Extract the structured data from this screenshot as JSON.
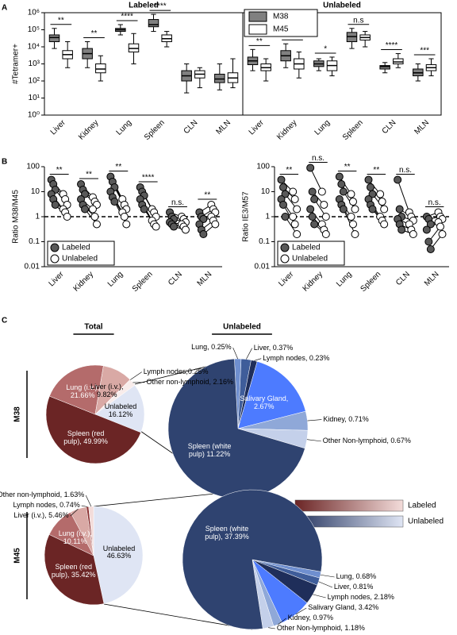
{
  "chart_data": [
    {
      "type": "box",
      "panel": "A",
      "ylabel": "#Tetramer+",
      "log": true,
      "ylim": [
        1,
        1000000
      ],
      "yticks": [
        {
          "value": 1,
          "label": "10⁰"
        },
        {
          "value": 10,
          "label": "10¹"
        },
        {
          "value": 100,
          "label": "10²"
        },
        {
          "value": 1000,
          "label": "10³"
        },
        {
          "value": 10000,
          "label": "10⁴"
        },
        {
          "value": 100000,
          "label": "10⁵"
        },
        {
          "value": 1000000,
          "label": "10⁶"
        }
      ],
      "legend": [
        {
          "name": "M38",
          "color": "#808080"
        },
        {
          "name": "M45",
          "color": "#ffffff"
        }
      ],
      "panels": [
        {
          "title": "Labeled",
          "categories": [
            "Liver",
            "Kidney",
            "Lung",
            "Spleen",
            "CLN",
            "MLN"
          ],
          "significance": [
            "**",
            "**",
            "****",
            "****",
            null,
            null
          ],
          "values": [
            [
              [
                8000,
                20000,
                35000,
                50000,
                120000
              ],
              [
                600,
                2000,
                4000,
                8000,
                20000
              ],
              [
                50000,
                80000,
                100000,
                120000,
                200000
              ],
              [
                80000,
                150000,
                200000,
                400000,
                800000
              ],
              [
                20,
                100,
                200,
                400,
                1000
              ],
              [
                30,
                80,
                130,
                250,
                1000
              ]
            ],
            [
              [
                600,
                2000,
                3500,
                6000,
                20000
              ],
              [
                100,
                300,
                500,
                1000,
                3000
              ],
              [
                1000,
                5000,
                8000,
                15000,
                60000
              ],
              [
                10000,
                20000,
                30000,
                50000,
                80000
              ],
              [
                40,
                150,
                250,
                400,
                600
              ],
              [
                40,
                80,
                150,
                300,
                2000
              ]
            ]
          ]
        },
        {
          "title": "Unlabeled",
          "categories": [
            "Liver",
            "Kidney",
            "Lung",
            "Spleen",
            "CLN",
            "MLN"
          ],
          "significance": [
            "**",
            "**",
            "*",
            "n.s",
            "****",
            "***"
          ],
          "values": [
            [
              [
                400,
                900,
                1500,
                2500,
                7000
              ],
              [
                600,
                1500,
                3000,
                6000,
                15000
              ],
              [
                400,
                700,
                1000,
                1500,
                2000
              ],
              [
                8000,
                20000,
                40000,
                70000,
                120000
              ],
              [
                300,
                500,
                700,
                800,
                1200
              ],
              [
                100,
                200,
                300,
                500,
                1000
              ]
            ],
            [
              [
                100,
                400,
                600,
                1000,
                2000
              ],
              [
                150,
                500,
                1000,
                2000,
                5000
              ],
              [
                200,
                400,
                800,
                1500,
                2500
              ],
              [
                10000,
                25000,
                35000,
                50000,
                80000
              ],
              [
                600,
                1000,
                1300,
                2000,
                4000
              ],
              [
                200,
                400,
                600,
                900,
                2000
              ]
            ]
          ]
        }
      ]
    },
    {
      "type": "paired",
      "panel": "B",
      "ylabel": "Ratio M38/M45",
      "log": true,
      "ylim": [
        0.01,
        100
      ],
      "yticks": [
        0.01,
        0.1,
        1,
        10,
        100
      ],
      "hline": 1,
      "categories": [
        "Liver",
        "Kidney",
        "Lung",
        "Spleen",
        "CLN",
        "MLN"
      ],
      "significance": [
        "**",
        "**",
        "**",
        "****",
        "n.s.",
        "**"
      ],
      "series": [
        {
          "name": "Labeled",
          "color": "#595959",
          "values": [
            [
              30,
              20,
              12,
              8,
              5,
              3
            ],
            [
              20,
              12,
              8,
              5,
              3,
              2
            ],
            [
              40,
              25,
              15,
              10,
              6,
              4
            ],
            [
              15,
              10,
              7,
              5,
              3,
              2
            ],
            [
              1.5,
              1,
              0.8,
              0.6,
              0.5,
              0.4
            ],
            [
              1.5,
              1,
              0.8,
              0.5,
              0.3,
              0.2
            ]
          ]
        },
        {
          "name": "Unlabeled",
          "color": "#ffffff",
          "values": [
            [
              8,
              5,
              3,
              2,
              1.5,
              1
            ],
            [
              6,
              4,
              3,
              2,
              1,
              0.5
            ],
            [
              5,
              3,
              2,
              1.5,
              1,
              0.5
            ],
            [
              2,
              1.5,
              1,
              0.7,
              0.5,
              0.4
            ],
            [
              1,
              0.8,
              0.6,
              0.5,
              0.4,
              0.3
            ],
            [
              3,
              2,
              1.5,
              1,
              0.7,
              0.5
            ]
          ]
        }
      ]
    },
    {
      "type": "paired",
      "ylabel": "Ratio IE3/M57",
      "log": true,
      "ylim": [
        0.01,
        100
      ],
      "yticks": [
        0.01,
        0.1,
        1,
        10,
        100
      ],
      "hline": 1,
      "categories": [
        "Liver",
        "Kidney",
        "Lung",
        "Spleen",
        "CLN",
        "MLN"
      ],
      "significance": [
        "**",
        "n.s.",
        "**",
        "**",
        "n.s.",
        "n.s."
      ],
      "series": [
        {
          "name": "Labeled",
          "color": "#595959",
          "values": [
            [
              30,
              15,
              8,
              5,
              3,
              1
            ],
            [
              90,
              10,
              5,
              2,
              1,
              0.5
            ],
            [
              40,
              20,
              10,
              5,
              3,
              2
            ],
            [
              30,
              15,
              8,
              5,
              3,
              2
            ],
            [
              30,
              2,
              1,
              0.8,
              0.5,
              0.3
            ],
            [
              1,
              0.8,
              0.5,
              0.3,
              0.1,
              0.05
            ]
          ]
        },
        {
          "name": "Unlabeled",
          "color": "#ffffff",
          "values": [
            [
              10,
              5,
              2,
              1,
              0.5,
              0.2
            ],
            [
              10,
              3,
              1,
              0.5,
              0.3,
              0.2
            ],
            [
              8,
              4,
              2,
              1,
              0.5,
              0.2
            ],
            [
              8,
              4,
              2,
              1,
              0.7,
              0.5
            ],
            [
              1.5,
              1,
              0.7,
              0.5,
              0.3,
              0.2
            ],
            [
              1.5,
              1,
              0.8,
              0.6,
              0.4,
              0.2
            ]
          ]
        }
      ]
    },
    {
      "type": "pie",
      "panel": "C",
      "columns": [
        "Total",
        "Unlabeled"
      ],
      "legend": [
        {
          "name": "Labeled",
          "colors": [
            "#6b2525",
            "#f3dcda"
          ]
        },
        {
          "name": "Unlabeled",
          "colors": [
            "#26355f",
            "#dfe5f4"
          ]
        }
      ],
      "rows": [
        {
          "name": "M38",
          "pies": [
            {
              "values": [
                0.25,
                2.16,
                16.12,
                49.99,
                21.66,
                9.82
              ],
              "value_labels": [
                "Lymph nodes;0.25%",
                "Other non-lymphoid, 2.16%",
                "Unlabeled 16.12%",
                "Spleen (red pulp), 49.99%",
                "Lung (i.v.); 21.66%",
                "Liver (i.v.), 9.82%"
              ],
              "colors": [
                "#f3dcda",
                "#f8eceb",
                "#dfe5f4",
                "#6b2525",
                "#b46b6b",
                "#d9a9a5"
              ]
            },
            {
              "values": [
                0.25,
                0.37,
                0.23,
                2.67,
                0.71,
                0.67,
                11.22
              ],
              "value_labels": [
                "Lung, 0.25%",
                "Liver, 0.37%",
                "Lymph nodes, 0.23%",
                "Salivary Gland, 2.67%",
                "Kidney, 0.71%",
                "Other Non-lymphoid, 0.67%",
                "Spleen (white pulp) 11.22%"
              ],
              "colors": [
                "#6f8fcf",
                "#3f5d9a",
                "#1f2e5a",
                "#4d7bff",
                "#8fa8d8",
                "#c4d0ea",
                "#2f4370"
              ]
            }
          ]
        },
        {
          "name": "M45",
          "pies": [
            {
              "values": [
                46.63,
                35.42,
                10.11,
                5.46,
                0.74,
                1.63
              ],
              "value_labels": [
                "Unlabeled 46.63%",
                "Spleen (red pulp), 35.42%",
                "Lung (i.v.), 10.11%",
                "Liver (i.v.), 5.46%",
                "Lymph nodes, 0.74%",
                "Other non-lymphoid, 1.63%"
              ],
              "colors": [
                "#dfe5f4",
                "#6b2525",
                "#b46b6b",
                "#d9a9a5",
                "#8a3030",
                "#f3dcda"
              ]
            },
            {
              "values": [
                0.68,
                0.81,
                2.18,
                3.42,
                0.97,
                1.18,
                37.39
              ],
              "value_labels": [
                "Lung, 0.68%",
                "Liver, 0.81%",
                "Lymph nodes, 2.18%",
                "Salivary Gland, 3.42%",
                "Kidney, 0.97%",
                "Other Non-lymphoid, 1.18%",
                "Spleen (white pulp), 37.39%"
              ],
              "colors": [
                "#6f8fcf",
                "#3f5d9a",
                "#1f2e5a",
                "#4d7bff",
                "#8fa8d8",
                "#c4d0ea",
                "#2f4370"
              ]
            }
          ]
        }
      ]
    }
  ]
}
